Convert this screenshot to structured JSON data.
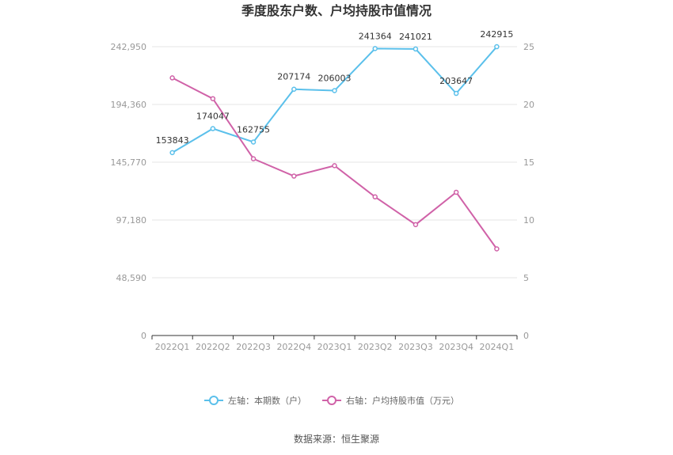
{
  "chart_data": {
    "type": "line",
    "title": "季度股东户数、户均持股市值情况",
    "categories": [
      "2022Q1",
      "2022Q2",
      "2022Q3",
      "2022Q4",
      "2023Q1",
      "2023Q2",
      "2023Q3",
      "2023Q4",
      "2024Q1"
    ],
    "series": [
      {
        "name": "左轴：本期数（户）",
        "axis": "left",
        "color": "#5bc0eb",
        "values": [
          153843,
          174047,
          162755,
          207174,
          206003,
          241364,
          241021,
          203647,
          242915
        ],
        "labels": [
          "153843",
          "174047",
          "162755",
          "207174",
          "206003",
          "241364",
          "241021",
          "203647",
          "242915"
        ]
      },
      {
        "name": "右轴：户均持股市值（万元）",
        "axis": "right",
        "color": "#d062a8",
        "values": [
          22.3,
          20.5,
          15.3,
          13.8,
          14.7,
          12.0,
          9.6,
          12.4,
          7.5
        ]
      }
    ],
    "y_left": {
      "ticks": [
        0,
        48590,
        97180,
        145770,
        194360,
        242950
      ],
      "tick_labels": [
        "0",
        "48,590",
        "97,180",
        "145,770",
        "194,360",
        "242,950"
      ],
      "ylim": [
        0,
        242950
      ]
    },
    "y_right": {
      "ticks": [
        0,
        5,
        10,
        15,
        20,
        25
      ],
      "tick_labels": [
        "0",
        "5",
        "10",
        "15",
        "20",
        "25"
      ],
      "ylim": [
        0,
        25
      ]
    },
    "grid": true,
    "legend_position": "bottom"
  },
  "source_text": "数据来源：恒生聚源"
}
